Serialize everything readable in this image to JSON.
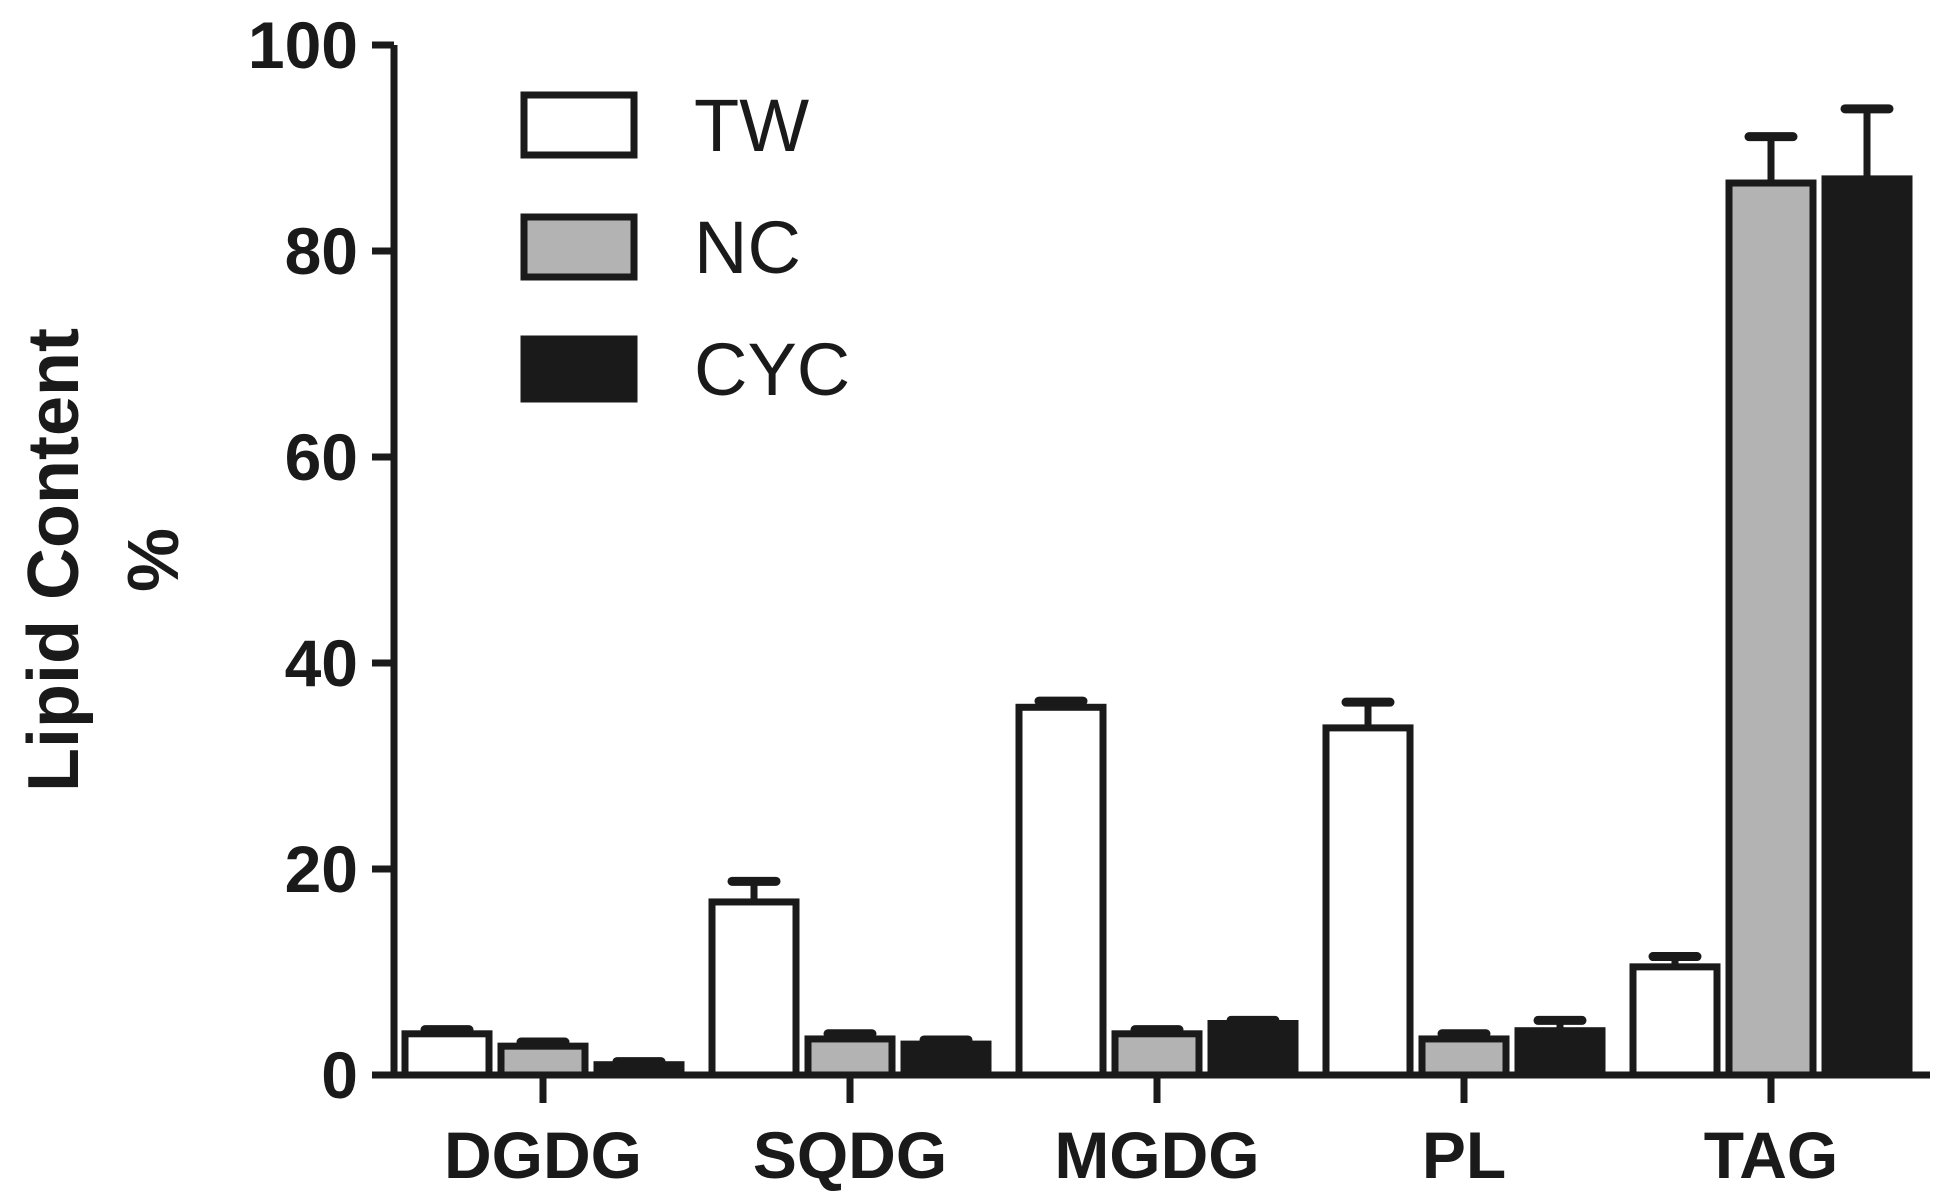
{
  "chart_data": {
    "type": "bar",
    "title": "",
    "xlabel": "",
    "ylabel": "Lipid Content",
    "ylabel_unit": "%",
    "categories": [
      "DGDG",
      "SQDG",
      "MGDG",
      "PL",
      "TAG"
    ],
    "ylim": [
      0,
      100
    ],
    "yticks": [
      "0",
      "20",
      "40",
      "60",
      "80",
      "100"
    ],
    "series": [
      {
        "name": "TW",
        "color": "#ffffff",
        "values": [
          4.0,
          16.8,
          35.7,
          33.7,
          10.5
        ],
        "errors": [
          0.4,
          2.0,
          0.6,
          2.5,
          1.0
        ]
      },
      {
        "name": "NC",
        "color": "#b3b3b3",
        "values": [
          2.8,
          3.5,
          4.0,
          3.5,
          86.6
        ],
        "errors": [
          0.4,
          0.5,
          0.4,
          0.5,
          4.5
        ]
      },
      {
        "name": "CYC",
        "color": "#1a1a1a",
        "values": [
          1.0,
          3.0,
          5.0,
          4.3,
          87.0
        ],
        "errors": [
          0.3,
          0.4,
          0.3,
          1.0,
          6.8
        ]
      }
    ],
    "legend_position": "top-left",
    "grid": false
  }
}
